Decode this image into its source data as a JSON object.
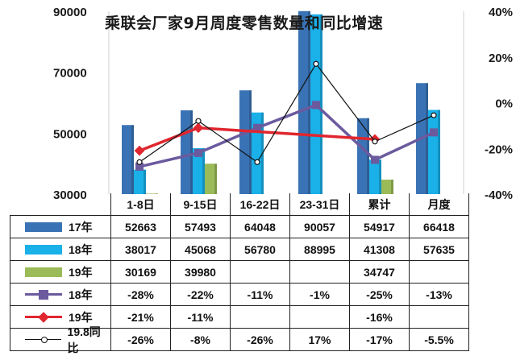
{
  "title": "乘联会厂家9月周度零售数量和同比增速",
  "left_axis_ticks": [
    "90000",
    "70000",
    "50000",
    "30000"
  ],
  "right_axis_ticks": [
    "40%",
    "20%",
    "0%",
    "-20%",
    "-40%"
  ],
  "colors": {
    "y17": "#3a73b5",
    "y18": "#1ab0e8",
    "y19": "#9bbb59",
    "line18": "#6b5a9e",
    "line19": "#e0262e",
    "line198": "#111111"
  },
  "table": {
    "rows": [
      {
        "label": "17年",
        "swatch": "bar",
        "color_key": "y17",
        "cells": [
          "52663",
          "57493",
          "64048",
          "90057",
          "54917",
          "66418"
        ]
      },
      {
        "label": "18年",
        "swatch": "bar",
        "color_key": "y18",
        "cells": [
          "38017",
          "45068",
          "56780",
          "88995",
          "41308",
          "57635"
        ]
      },
      {
        "label": "19年",
        "swatch": "bar",
        "color_key": "y19",
        "cells": [
          "30169",
          "39980",
          "",
          "",
          "34747",
          ""
        ]
      },
      {
        "label": "18年",
        "swatch": "line-square",
        "color_key": "line18",
        "cells": [
          "-28%",
          "-22%",
          "-11%",
          "-1%",
          "-25%",
          "-13%"
        ]
      },
      {
        "label": "19年",
        "swatch": "line-diamond",
        "color_key": "line19",
        "cells": [
          "-21%",
          "-11%",
          "",
          "",
          "-16%",
          ""
        ]
      },
      {
        "label": "19.8同比",
        "swatch": "line-circle",
        "color_key": "line198",
        "cells": [
          "-26%",
          "-8%",
          "-26%",
          "17%",
          "-17%",
          "-5.5%"
        ]
      }
    ]
  },
  "chart_data": {
    "type": "bar",
    "title": "乘联会厂家9月周度零售数量和同比增速",
    "categories": [
      "1-8日",
      "9-15日",
      "16-22日",
      "23-31日",
      "累计",
      "月度"
    ],
    "ylim": [
      30000,
      90000
    ],
    "y2lim": [
      -0.4,
      0.4
    ],
    "y2_format": "percent",
    "bar_series": [
      {
        "name": "17年",
        "color_key": "y17",
        "values": [
          52663,
          57493,
          64048,
          90057,
          54917,
          66418
        ]
      },
      {
        "name": "18年",
        "color_key": "y18",
        "values": [
          38017,
          45068,
          56780,
          88995,
          41308,
          57635
        ]
      },
      {
        "name": "19年",
        "color_key": "y19",
        "values": [
          30169,
          39980,
          null,
          null,
          34747,
          null
        ]
      }
    ],
    "line_series": [
      {
        "name": "18年",
        "color_key": "line18",
        "marker": "square",
        "values": [
          -0.28,
          -0.22,
          -0.11,
          -0.01,
          -0.25,
          -0.13
        ]
      },
      {
        "name": "19年",
        "color_key": "line19",
        "marker": "diamond",
        "values": [
          -0.21,
          -0.11,
          null,
          null,
          -0.16,
          null
        ]
      },
      {
        "name": "19.8同比",
        "color_key": "line198",
        "marker": "circle",
        "values": [
          -0.26,
          -0.08,
          -0.26,
          0.17,
          -0.17,
          -0.055
        ]
      }
    ],
    "gridlines": false,
    "legend": "table-left"
  }
}
